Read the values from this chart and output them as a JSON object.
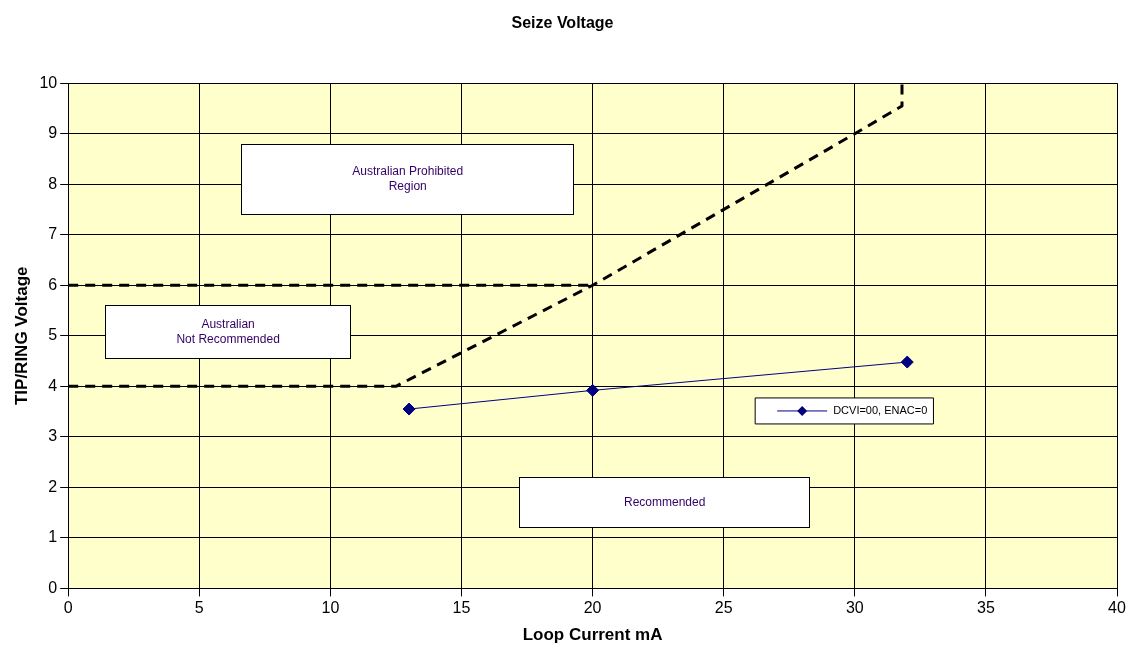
{
  "chart_data": {
    "type": "line",
    "title": "Seize Voltage",
    "xlabel": "Loop Current mA",
    "ylabel": "TIP/RING Voltage",
    "xlim": [
      0,
      40
    ],
    "xticks": [
      0,
      5,
      10,
      15,
      20,
      25,
      30,
      35,
      40
    ],
    "ylim": [
      0,
      10
    ],
    "yticks": [
      0,
      1,
      2,
      3,
      4,
      5,
      6,
      7,
      8,
      9,
      10
    ],
    "grid": true,
    "legend": "right",
    "annotations": [
      "Australian Prohibited\nRegion",
      "Australian\nNot Recommended",
      "Recommended"
    ],
    "series": [
      {
        "name": "DCVI=00, ENAC=0",
        "color": "#000080",
        "x": [
          13,
          20,
          32
        ],
        "values": [
          3.55,
          3.92,
          4.48
        ],
        "marker": "diamond",
        "line_style": "solid"
      },
      {
        "color": "#000000",
        "x": [
          0,
          12.5,
          20,
          30,
          31.8,
          31.8
        ],
        "values": [
          4,
          4,
          6,
          9,
          9.55,
          10
        ],
        "marker": "none",
        "line_style": "dashed"
      },
      {
        "color": "#000000",
        "x": [
          0,
          20
        ],
        "values": [
          6,
          6
        ],
        "marker": "none",
        "line_style": "dashed"
      }
    ]
  }
}
